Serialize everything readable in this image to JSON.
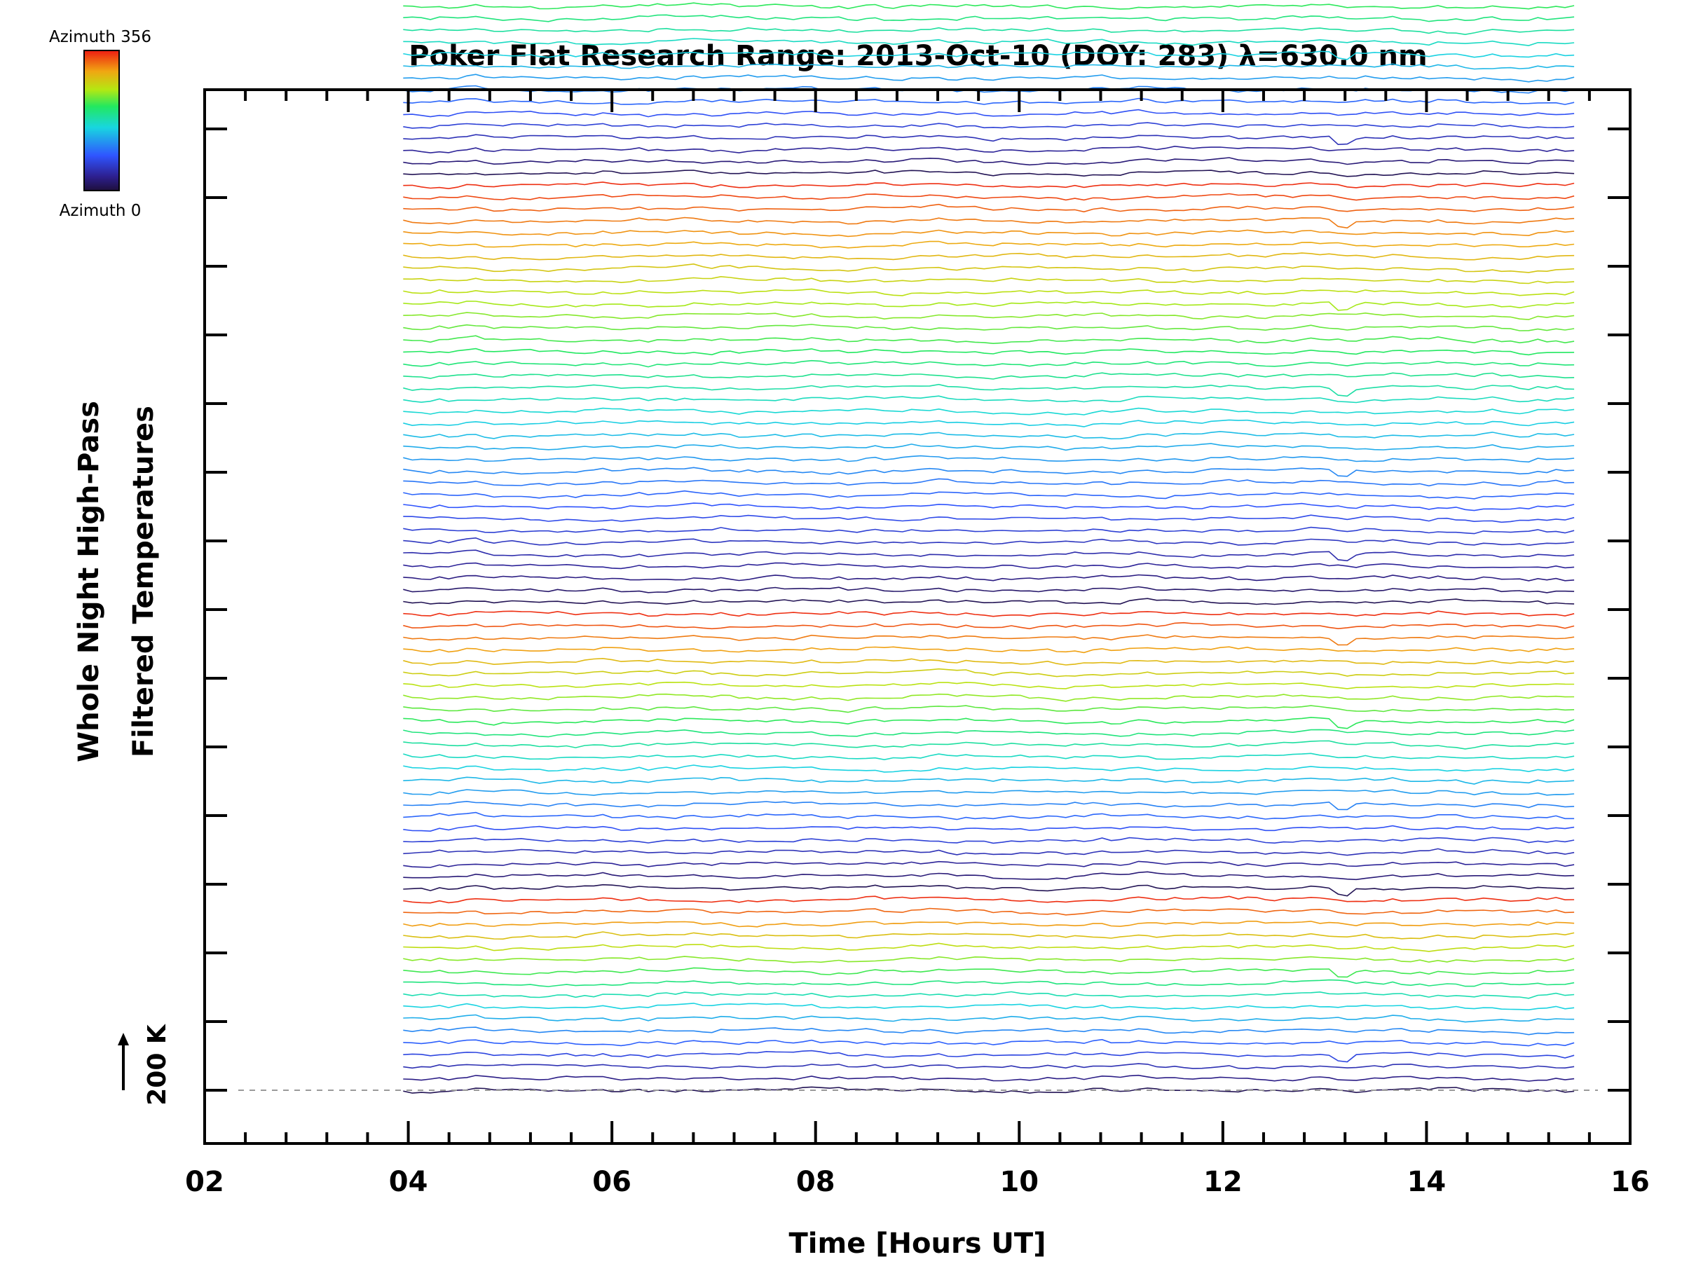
{
  "chart_data": {
    "type": "line",
    "title": "Poker Flat Research Range: 2013-Oct-10 (DOY: 283) λ=630.0 nm",
    "xlabel": "Time [Hours UT]",
    "ylabel_line1": "Whole Night High-Pass",
    "ylabel_line2": "Filtered Temperatures",
    "xlim": [
      2,
      16
    ],
    "x_ticks": [
      "02",
      "04",
      "06",
      "08",
      "10",
      "12",
      "14",
      "16"
    ],
    "x_tick_values": [
      2,
      4,
      6,
      8,
      10,
      12,
      14,
      16
    ],
    "x_minor_step": 0.4,
    "data_time_range": [
      3.95,
      15.45
    ],
    "trace_count": 140,
    "offset_per_trace_K": 50,
    "scale_bar_label": "200 K",
    "scale_bar_value_K": 200,
    "colorbar": {
      "top_label": "Azimuth 356",
      "bottom_label": "Azimuth 0",
      "colormap": "rainbow"
    },
    "baseline_dashed": true,
    "legend_position": "top-left",
    "grid": false,
    "colors": {
      "axes": "#000000",
      "baseline": "#9a9a9a",
      "background": "#ffffff"
    }
  }
}
